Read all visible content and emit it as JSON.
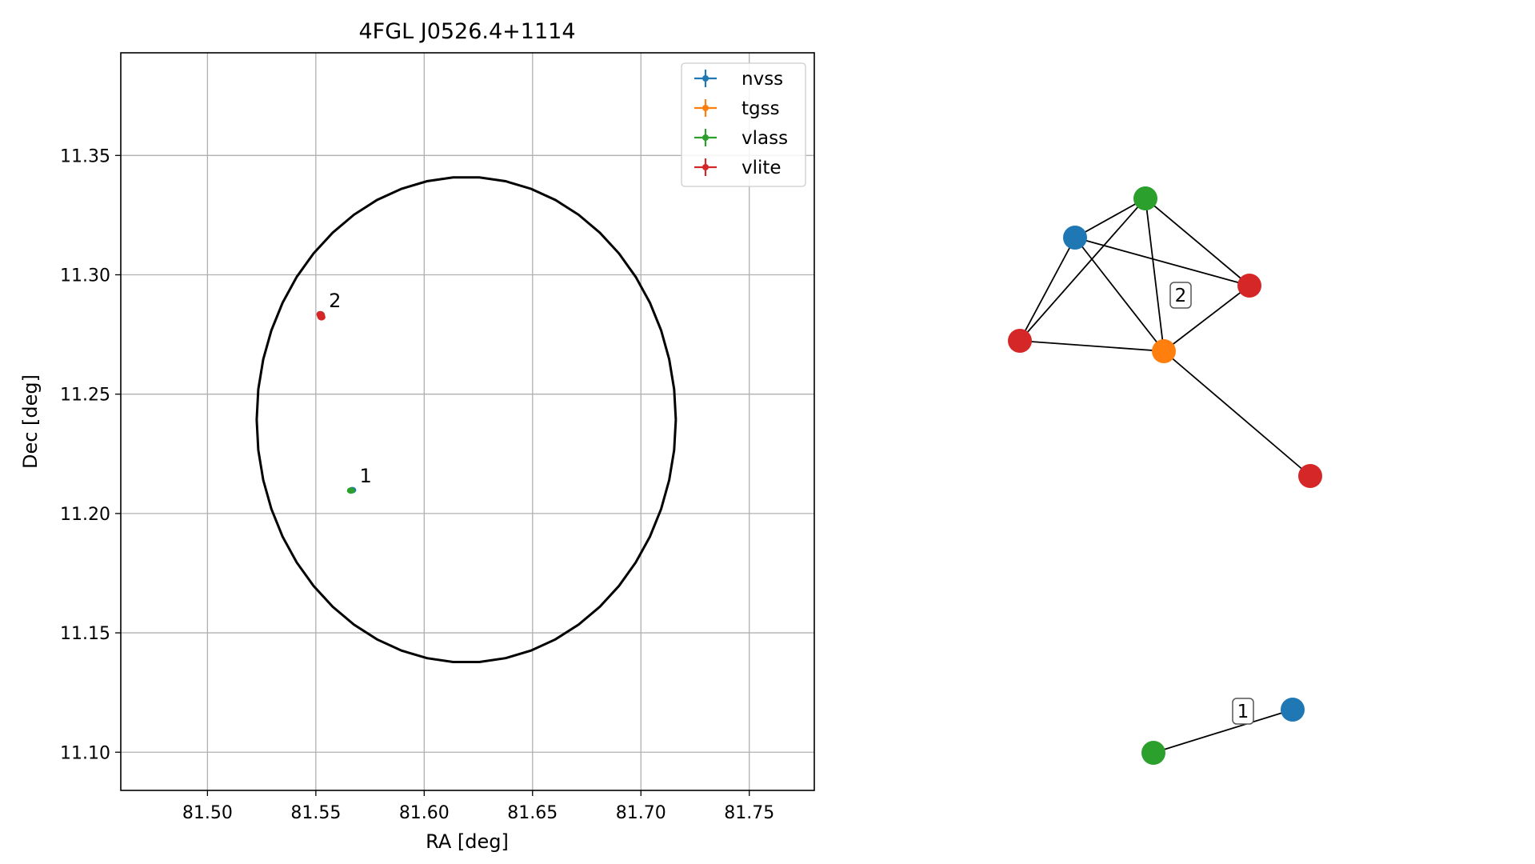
{
  "chart_data": [
    {
      "type": "scatter",
      "title": "4FGL J0526.4+1114",
      "xlabel": "RA [deg]",
      "ylabel": "Dec [deg]",
      "xlim": [
        81.46,
        81.78
      ],
      "ylim": [
        11.084,
        11.393
      ],
      "xticks": [
        "81.50",
        "81.55",
        "81.60",
        "81.65",
        "81.70",
        "81.75"
      ],
      "xtick_values": [
        81.5,
        81.55,
        81.6,
        81.65,
        81.7,
        81.75
      ],
      "yticks": [
        "11.10",
        "11.15",
        "11.20",
        "11.25",
        "11.30",
        "11.35"
      ],
      "ytick_values": [
        11.1,
        11.15,
        11.2,
        11.25,
        11.3,
        11.35
      ],
      "grid": true,
      "legend_position": "top-right",
      "series": [
        {
          "name": "nvss",
          "color": "#1f77b4",
          "points": [
            {
              "ra": 81.5668,
              "dec": 11.2098
            },
            {
              "ra": 81.5524,
              "dec": 11.2832
            }
          ]
        },
        {
          "name": "tgss",
          "color": "#ff7f0e",
          "points": [
            {
              "ra": 81.5522,
              "dec": 11.283
            }
          ]
        },
        {
          "name": "vlass",
          "color": "#2ca02c",
          "points": [
            {
              "ra": 81.5662,
              "dec": 11.2096
            },
            {
              "ra": 81.5523,
              "dec": 11.2831
            }
          ]
        },
        {
          "name": "vlite",
          "color": "#d62728",
          "points": [
            {
              "ra": 81.5525,
              "dec": 11.2825
            },
            {
              "ra": 81.5521,
              "dec": 11.2835
            },
            {
              "ra": 81.5526,
              "dec": 11.2822
            }
          ]
        }
      ],
      "annotations": [
        {
          "text": "1",
          "ra": 81.5665,
          "dec": 11.2097
        },
        {
          "text": "2",
          "ra": 81.5523,
          "dec": 11.283
        }
      ],
      "ellipse": {
        "center_ra": 81.6194,
        "center_dec": 11.2393,
        "semi_axis_ra": 0.0967,
        "semi_axis_dec": 0.1017,
        "color": "#000000"
      }
    },
    {
      "type": "graph",
      "node_colors": {
        "nvss": "#1f77b4",
        "tgss": "#ff7f0e",
        "vlass": "#2ca02c",
        "vlite": "#d62728"
      },
      "nodes": [
        {
          "id": "a",
          "survey": "nvss"
        },
        {
          "id": "b",
          "survey": "vlass"
        },
        {
          "id": "c",
          "survey": "vlite"
        },
        {
          "id": "d",
          "survey": "vlite"
        },
        {
          "id": "e",
          "survey": "tgss"
        },
        {
          "id": "f",
          "survey": "vlite"
        },
        {
          "id": "g",
          "survey": "nvss"
        },
        {
          "id": "h",
          "survey": "vlass"
        }
      ],
      "edges": [
        [
          "a",
          "b"
        ],
        [
          "a",
          "c"
        ],
        [
          "a",
          "e"
        ],
        [
          "a",
          "d"
        ],
        [
          "b",
          "c"
        ],
        [
          "b",
          "d"
        ],
        [
          "b",
          "e"
        ],
        [
          "c",
          "e"
        ],
        [
          "d",
          "e"
        ],
        [
          "e",
          "f"
        ],
        [
          "g",
          "h"
        ]
      ],
      "labels": [
        "2",
        "1"
      ]
    }
  ]
}
